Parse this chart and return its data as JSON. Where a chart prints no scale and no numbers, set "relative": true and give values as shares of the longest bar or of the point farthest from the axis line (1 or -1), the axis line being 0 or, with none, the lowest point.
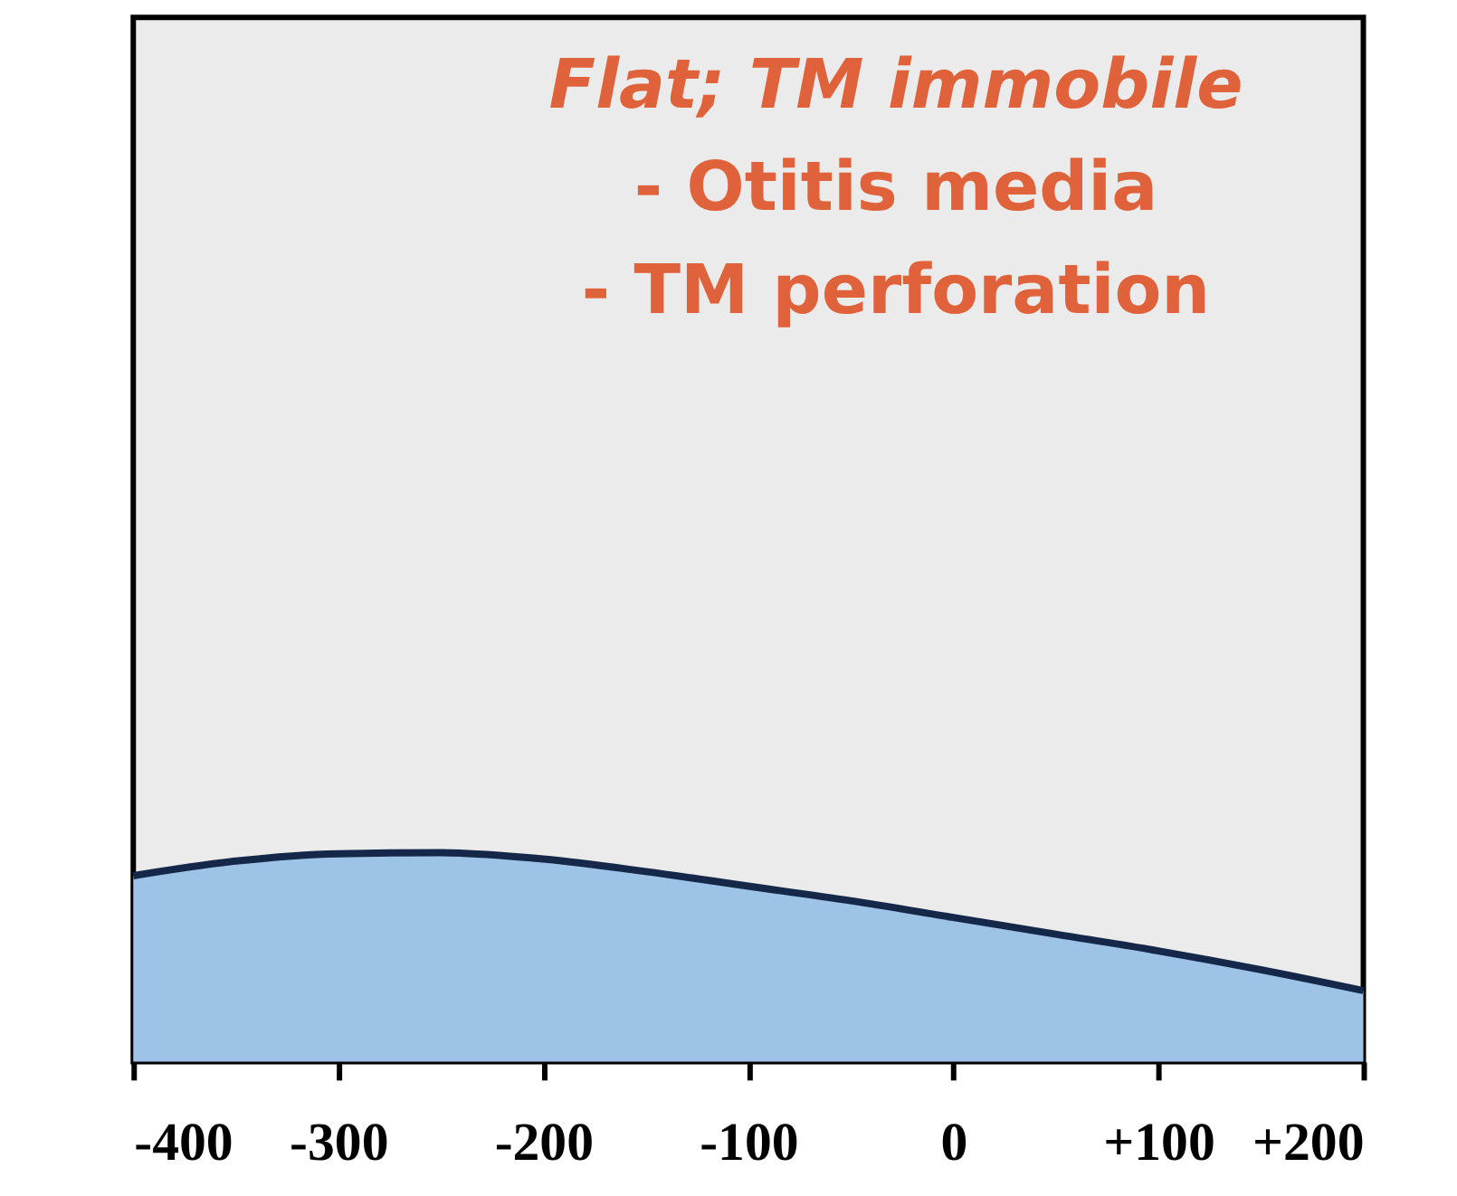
{
  "chart_data": {
    "type": "area",
    "relative": true,
    "x": [
      -400,
      -350,
      -300,
      -250,
      -200,
      -150,
      -100,
      -50,
      0,
      50,
      100,
      150,
      200
    ],
    "series": [
      {
        "color": "#9dc3e6",
        "values": [
          0.89,
          0.96,
          0.995,
          1.0,
          0.97,
          0.91,
          0.84,
          0.77,
          0.69,
          0.61,
          0.53,
          0.44,
          0.34
        ]
      }
    ],
    "xlim": [
      -400,
      200
    ],
    "xticks": [
      -400,
      -300,
      -200,
      -100,
      0,
      {
        "value": 100,
        "label": "+100"
      },
      {
        "value": 200,
        "label": "+200"
      }
    ],
    "annotations": [
      "Flat; TM immobile",
      "- Otitis media",
      "- TM perforation"
    ],
    "grid": false
  }
}
